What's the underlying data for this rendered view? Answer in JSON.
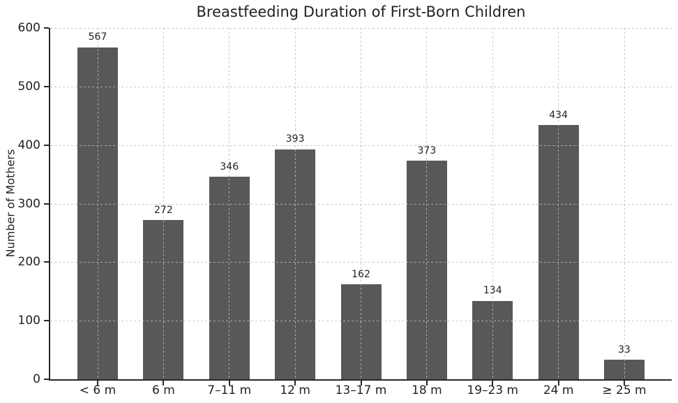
{
  "chart_data": {
    "type": "bar",
    "title": "Breastfeeding Duration of First-Born Children",
    "xlabel": "",
    "ylabel": "Number of Mothers",
    "categories": [
      "< 6 m",
      "6 m",
      "7–11 m",
      "12 m",
      "13–17 m",
      "18 m",
      "19–23 m",
      "24 m",
      "≥ 25 m"
    ],
    "values": [
      567,
      272,
      346,
      393,
      162,
      373,
      134,
      434,
      33
    ],
    "ylim": [
      0,
      600
    ],
    "yticks": [
      0,
      100,
      200,
      300,
      400,
      500,
      600
    ],
    "grid": "dashed horizontal and vertical, drawn over bars",
    "legend": null,
    "bar_value_labels": [
      "567",
      "272",
      "346",
      "393",
      "162",
      "373",
      "134",
      "434",
      "33"
    ]
  },
  "colors": {
    "bar": "#585858",
    "grid": "#bdbdbd",
    "axis": "#282828",
    "text": "#222222",
    "background": "#ffffff"
  }
}
